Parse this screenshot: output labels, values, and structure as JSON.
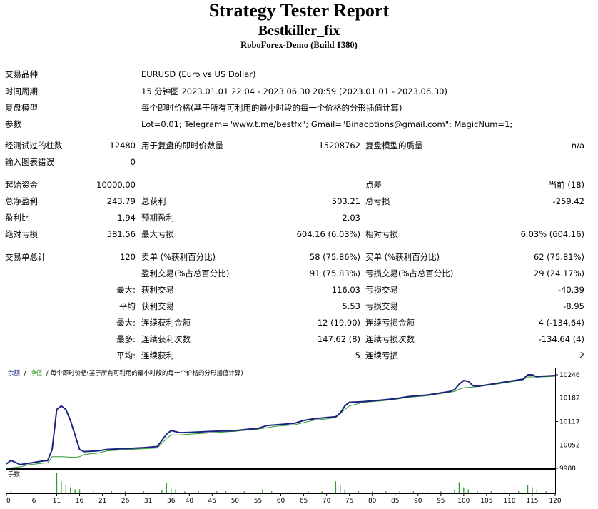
{
  "header": {
    "title": "Strategy Tester Report",
    "ea_name": "Bestkiller_fix",
    "server": "RoboForex-Demo (Build 1380)"
  },
  "settings": {
    "symbol_label": "交易品种",
    "symbol_value": "EURUSD (Euro vs US Dollar)",
    "period_label": "时间周期",
    "period_value": "15 分钟图 2023.01.01 22:04 - 2023.06.30 20:59 (2023.01.01 - 2023.06.30)",
    "model_label": "复盘模型",
    "model_value": "每个即时价格(基于所有可利用的最小时段的每一个价格的分形插值计算)",
    "params_label": "参数",
    "params_value": "Lot=0.01; Telegram=\"www.t.me/bestfx\"; Gmail=\"Binaoptions@gmail.com\"; MagicNum=1;"
  },
  "test_info": {
    "bars_label": "经测试过的柱数",
    "bars_value": "12480",
    "ticks_label": "用于复盘的即时价数量",
    "ticks_value": "15208762",
    "quality_label": "复盘模型的质量",
    "quality_value": "n/a",
    "errors_label": "输入图表错误",
    "errors_value": "0"
  },
  "results": {
    "deposit_label": "起始资金",
    "deposit_value": "10000.00",
    "spread_label": "点差",
    "spread_value": "当前 (18)",
    "net_label": "总净盈利",
    "net_value": "243.79",
    "gross_profit_label": "总获利",
    "gross_profit_value": "503.21",
    "gross_loss_label": "总亏损",
    "gross_loss_value": "-259.42",
    "pf_label": "盈利比",
    "pf_value": "1.94",
    "payoff_label": "预期盈利",
    "payoff_value": "2.03",
    "abs_dd_label": "绝对亏损",
    "abs_dd_value": "581.56",
    "max_dd_label": "最大亏损",
    "max_dd_value": "604.16 (6.03%)",
    "rel_dd_label": "相对亏损",
    "rel_dd_value": "6.03% (604.16)"
  },
  "trades": {
    "total_label": "交易单总计",
    "total_value": "120",
    "short_label": "卖单 (%获利百分比)",
    "short_value": "58 (75.86%)",
    "long_label": "买单 (%获利百分比)",
    "long_value": "62 (75.81%)",
    "profit_trades_label": "盈利交易(%占总百分比)",
    "profit_trades_value": "91 (75.83%)",
    "loss_trades_label": "亏损交易(%占总百分比)",
    "loss_trades_value": "29 (24.17%)",
    "largest_prefix": "最大:",
    "largest_profit_label": "获利交易",
    "largest_profit_value": "116.03",
    "largest_loss_label": "亏损交易",
    "largest_loss_value": "-40.39",
    "average_prefix": "平均",
    "average_profit_label": "获利交易",
    "average_profit_value": "5.53",
    "average_loss_label": "亏损交易",
    "average_loss_value": "-8.95",
    "max_cons_prefix": "最大:",
    "max_cons_wins_label": "连续获利金额",
    "max_cons_wins_value": "12 (19.90)",
    "max_cons_losses_label": "连续亏损金额",
    "max_cons_losses_value": "4 (-134.64)",
    "maximal_prefix": "最多:",
    "maximal_profit_label": "连续获利次数",
    "maximal_profit_value": "147.62 (8)",
    "maximal_loss_label": "连续亏损次数",
    "maximal_loss_value": "-134.64 (4)",
    "avg_cons_prefix": "平均:",
    "avg_cons_wins_label": "连续获利",
    "avg_cons_wins_value": "5",
    "avg_cons_losses_label": "连续亏损",
    "avg_cons_losses_value": "2"
  },
  "chart_data": {
    "type": "line",
    "legend_balance": "余额",
    "legend_sep": "/",
    "legend_equity": "净值",
    "legend_desc": "/ 每个即时价格(基于所有可利用的最小时段的每一个价格的分形插值计算)",
    "volume_label": "手数",
    "y_ticks": [
      "10246",
      "10182",
      "10117",
      "10052",
      "9988"
    ],
    "x_ticks": [
      "0",
      "6",
      "11",
      "16",
      "21",
      "26",
      "31",
      "36",
      "40",
      "45",
      "50",
      "55",
      "60",
      "65",
      "70",
      "75",
      "80",
      "85",
      "90",
      "95",
      "100",
      "105",
      "110",
      "115",
      "120"
    ],
    "ylim": [
      9988,
      10246
    ],
    "xlim": [
      0,
      120
    ],
    "colors": {
      "balance": "#1a237e",
      "equity": "#2e9d2e",
      "volume": "#2e9d2e"
    },
    "balance": [
      [
        0,
        10000
      ],
      [
        1,
        10010
      ],
      [
        3,
        9998
      ],
      [
        5,
        10002
      ],
      [
        8,
        10008
      ],
      [
        9,
        10009
      ],
      [
        10,
        10040
      ],
      [
        11,
        10150
      ],
      [
        12,
        10160
      ],
      [
        13,
        10150
      ],
      [
        14,
        10120
      ],
      [
        15,
        10080
      ],
      [
        16,
        10040
      ],
      [
        17,
        10034
      ],
      [
        20,
        10036
      ],
      [
        22,
        10040
      ],
      [
        27,
        10043
      ],
      [
        30,
        10045
      ],
      [
        33,
        10048
      ],
      [
        35,
        10082
      ],
      [
        36,
        10092
      ],
      [
        38,
        10086
      ],
      [
        40,
        10087
      ],
      [
        45,
        10090
      ],
      [
        50,
        10092
      ],
      [
        53,
        10096
      ],
      [
        55,
        10098
      ],
      [
        57,
        10106
      ],
      [
        59,
        10108
      ],
      [
        61,
        10110
      ],
      [
        63,
        10112
      ],
      [
        65,
        10120
      ],
      [
        67,
        10124
      ],
      [
        70,
        10128
      ],
      [
        72,
        10130
      ],
      [
        73,
        10140
      ],
      [
        74,
        10160
      ],
      [
        75,
        10170
      ],
      [
        78,
        10172
      ],
      [
        82,
        10176
      ],
      [
        85,
        10180
      ],
      [
        88,
        10186
      ],
      [
        92,
        10190
      ],
      [
        95,
        10196
      ],
      [
        97,
        10200
      ],
      [
        98,
        10205
      ],
      [
        99,
        10220
      ],
      [
        100,
        10230
      ],
      [
        101,
        10228
      ],
      [
        102,
        10216
      ],
      [
        103,
        10214
      ],
      [
        106,
        10220
      ],
      [
        110,
        10228
      ],
      [
        113,
        10234
      ],
      [
        114,
        10246
      ],
      [
        115,
        10246
      ],
      [
        116,
        10240
      ],
      [
        117,
        10242
      ],
      [
        120,
        10244
      ]
    ],
    "equity": [
      [
        0,
        9988
      ],
      [
        3,
        9992
      ],
      [
        5,
        9998
      ],
      [
        8,
        10002
      ],
      [
        9,
        10003
      ],
      [
        10,
        10020
      ],
      [
        11,
        10020
      ],
      [
        12,
        10020
      ],
      [
        15,
        10018
      ],
      [
        16,
        10020
      ],
      [
        17,
        10026
      ],
      [
        20,
        10030
      ],
      [
        22,
        10036
      ],
      [
        27,
        10040
      ],
      [
        30,
        10042
      ],
      [
        33,
        10044
      ],
      [
        35,
        10070
      ],
      [
        36,
        10080
      ],
      [
        38,
        10080
      ],
      [
        40,
        10082
      ],
      [
        45,
        10086
      ],
      [
        50,
        10090
      ],
      [
        53,
        10094
      ],
      [
        55,
        10096
      ],
      [
        57,
        10100
      ],
      [
        59,
        10104
      ],
      [
        61,
        10106
      ],
      [
        63,
        10108
      ],
      [
        65,
        10114
      ],
      [
        67,
        10120
      ],
      [
        70,
        10124
      ],
      [
        72,
        10128
      ],
      [
        73,
        10138
      ],
      [
        74,
        10150
      ],
      [
        75,
        10160
      ],
      [
        78,
        10170
      ],
      [
        82,
        10174
      ],
      [
        85,
        10178
      ],
      [
        88,
        10184
      ],
      [
        92,
        10188
      ],
      [
        95,
        10194
      ],
      [
        97,
        10198
      ],
      [
        98,
        10200
      ],
      [
        99,
        10206
      ],
      [
        100,
        10210
      ],
      [
        102,
        10212
      ],
      [
        106,
        10218
      ],
      [
        110,
        10226
      ],
      [
        113,
        10232
      ],
      [
        114,
        10240
      ],
      [
        117,
        10240
      ],
      [
        120,
        10242
      ]
    ],
    "volume": [
      [
        1,
        0.2
      ],
      [
        11,
        1.0
      ],
      [
        12,
        0.6
      ],
      [
        13,
        0.4
      ],
      [
        14,
        0.3
      ],
      [
        15,
        0.2
      ],
      [
        16,
        0.2
      ],
      [
        19,
        0.1
      ],
      [
        23,
        0.1
      ],
      [
        26,
        0.1
      ],
      [
        30,
        0.1
      ],
      [
        34,
        0.15
      ],
      [
        35,
        0.5
      ],
      [
        36,
        0.3
      ],
      [
        37,
        0.2
      ],
      [
        39,
        0.1
      ],
      [
        42,
        0.1
      ],
      [
        46,
        0.1
      ],
      [
        48,
        0.1
      ],
      [
        52,
        0.1
      ],
      [
        56,
        0.2
      ],
      [
        58,
        0.1
      ],
      [
        62,
        0.1
      ],
      [
        66,
        0.1
      ],
      [
        69,
        0.1
      ],
      [
        72,
        0.6
      ],
      [
        73,
        0.4
      ],
      [
        74,
        0.2
      ],
      [
        77,
        0.1
      ],
      [
        80,
        0.1
      ],
      [
        83,
        0.1
      ],
      [
        86,
        0.1
      ],
      [
        89,
        0.1
      ],
      [
        92,
        0.1
      ],
      [
        95,
        0.1
      ],
      [
        98,
        0.2
      ],
      [
        99,
        0.55
      ],
      [
        100,
        0.3
      ],
      [
        101,
        0.2
      ],
      [
        103,
        0.1
      ],
      [
        106,
        0.1
      ],
      [
        109,
        0.1
      ],
      [
        112,
        0.1
      ],
      [
        114,
        0.4
      ],
      [
        115,
        0.3
      ],
      [
        116,
        0.2
      ],
      [
        118,
        0.1
      ]
    ]
  }
}
